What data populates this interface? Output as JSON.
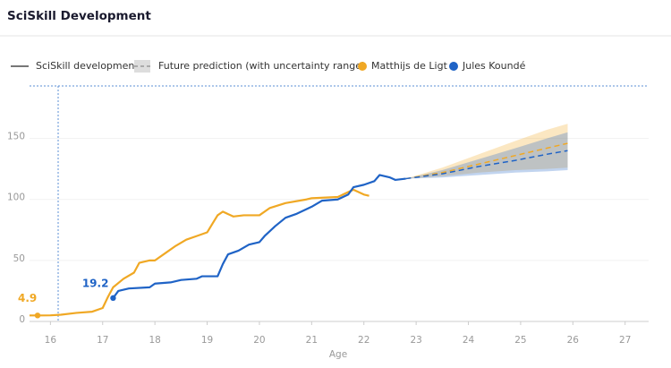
{
  "chart_data": {
    "type": "line",
    "title": "SciSkill Development",
    "x_label": "Age",
    "legend_items": [
      "SciSkill development",
      "Future prediction (with uncertainty range)"
    ],
    "xlim": [
      15.6,
      27.45
    ],
    "xticks": [
      16,
      17,
      18,
      19,
      20,
      21,
      22,
      23,
      24,
      25,
      26,
      27
    ],
    "ylim": [
      0,
      193
    ],
    "yticks": [
      0,
      50,
      100,
      150
    ],
    "series": [
      {
        "name": "Matthijs de Ligt",
        "color": "#f0a824",
        "x": [
          15.6,
          15.8,
          16.0,
          16.2,
          16.5,
          16.8,
          17.0,
          17.1,
          17.2,
          17.4,
          17.6,
          17.7,
          17.9,
          18.0,
          18.2,
          18.4,
          18.6,
          18.8,
          19.0,
          19.1,
          19.2,
          19.3,
          19.5,
          19.7,
          20.0,
          20.2,
          20.5,
          20.9,
          21.0,
          21.5,
          21.7,
          21.8,
          22.0,
          22.1
        ],
        "values": [
          4.9,
          4.9,
          5,
          5.5,
          7,
          8,
          11,
          20,
          28,
          35,
          40,
          48,
          50,
          50,
          56,
          62,
          67,
          70,
          73,
          80,
          87,
          90,
          86,
          87,
          87,
          93,
          97,
          100,
          101,
          102,
          106,
          108,
          104,
          103
        ]
      },
      {
        "name": "Jules Koundé",
        "color": "#1f63c6",
        "x": [
          17.2,
          17.3,
          17.5,
          17.9,
          18.0,
          18.3,
          18.5,
          18.8,
          18.9,
          19.2,
          19.3,
          19.4,
          19.6,
          19.8,
          20.0,
          20.1,
          20.3,
          20.5,
          20.7,
          21.0,
          21.2,
          21.5,
          21.7,
          21.8,
          22.0,
          22.2,
          22.3,
          22.5,
          22.6,
          22.8
        ],
        "values": [
          19.2,
          25,
          27,
          28,
          31,
          32,
          34,
          35,
          37,
          37,
          47,
          55,
          58,
          63,
          65,
          70,
          78,
          85,
          88,
          94,
          99,
          100,
          104,
          110,
          112,
          115,
          120,
          118,
          116,
          117
        ]
      }
    ],
    "forecast": [
      {
        "color": "#f0a824",
        "x": [
          22.8,
          23.5,
          24.2,
          24.9,
          25.5,
          25.9
        ],
        "values": [
          117,
          122,
          129,
          136,
          142,
          146
        ],
        "upper": [
          117,
          126,
          137,
          148,
          157,
          162
        ],
        "lower": [
          117,
          119,
          122,
          124,
          125,
          126
        ]
      },
      {
        "color": "#1f63c6",
        "x": [
          22.8,
          23.5,
          24.2,
          24.9,
          25.5,
          25.9
        ],
        "values": [
          117,
          121,
          127,
          132,
          137,
          140
        ],
        "upper": [
          117,
          124,
          133,
          142,
          150,
          155
        ],
        "lower": [
          117,
          118,
          120,
          122,
          123,
          124
        ]
      }
    ]
  }
}
